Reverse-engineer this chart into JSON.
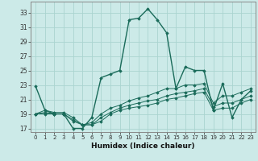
{
  "xlabel": "Humidex (Indice chaleur)",
  "background_color": "#cceae8",
  "grid_color": "#aad4d0",
  "line_color": "#1a6b5a",
  "x_ticks": [
    0,
    1,
    2,
    3,
    4,
    5,
    6,
    7,
    8,
    9,
    10,
    11,
    12,
    13,
    14,
    15,
    16,
    17,
    18,
    19,
    20,
    21,
    22,
    23
  ],
  "y_ticks": [
    17,
    19,
    21,
    23,
    25,
    27,
    29,
    31,
    33
  ],
  "ylim": [
    16.5,
    34.5
  ],
  "xlim": [
    -0.5,
    23.5
  ],
  "series": [
    [
      22.8,
      19.5,
      19.0,
      19.0,
      17.0,
      17.0,
      18.5,
      24.0,
      24.5,
      25.0,
      32.0,
      32.2,
      33.5,
      32.0,
      30.2,
      22.5,
      25.5,
      25.0,
      25.0,
      19.5,
      23.2,
      18.5,
      21.0,
      22.2
    ],
    [
      19.0,
      19.5,
      19.2,
      19.2,
      18.5,
      17.5,
      17.8,
      19.0,
      19.8,
      20.2,
      20.8,
      21.2,
      21.5,
      22.0,
      22.5,
      22.5,
      23.0,
      23.0,
      23.2,
      20.5,
      21.5,
      21.5,
      22.0,
      22.5
    ],
    [
      19.0,
      19.2,
      19.0,
      19.0,
      18.2,
      17.5,
      17.5,
      18.5,
      19.2,
      19.8,
      20.2,
      20.5,
      20.8,
      21.0,
      21.5,
      21.8,
      22.0,
      22.2,
      22.5,
      20.0,
      20.5,
      20.5,
      21.0,
      21.5
    ],
    [
      19.0,
      19.0,
      19.0,
      19.0,
      18.0,
      17.5,
      17.5,
      18.0,
      19.0,
      19.5,
      19.8,
      20.0,
      20.2,
      20.5,
      21.0,
      21.2,
      21.5,
      21.8,
      22.0,
      19.5,
      19.8,
      19.8,
      20.5,
      21.0
    ]
  ]
}
